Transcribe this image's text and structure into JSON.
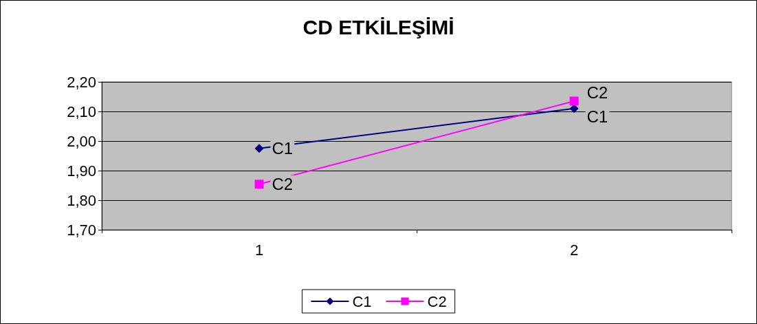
{
  "chart_data": {
    "type": "line",
    "title": "CD ETKİLEŞİMİ",
    "categories": [
      "1",
      "2"
    ],
    "series": [
      {
        "name": "C1",
        "color": "#000080",
        "values": [
          1.975,
          2.11
        ],
        "marker": "diamond"
      },
      {
        "name": "C2",
        "color": "#ff00ff",
        "values": [
          1.854,
          2.135
        ],
        "marker": "square"
      }
    ],
    "ylim": [
      1.7,
      2.2
    ],
    "yticks": [
      {
        "value": 1.7,
        "label": "1,70"
      },
      {
        "value": 1.8,
        "label": "1,80"
      },
      {
        "value": 1.9,
        "label": "1,90"
      },
      {
        "value": 2.0,
        "label": "2,00"
      },
      {
        "value": 2.1,
        "label": "2,10"
      },
      {
        "value": 2.2,
        "label": "2,20"
      }
    ],
    "grid": "y",
    "legend": "bottom",
    "line_style": "solid"
  }
}
